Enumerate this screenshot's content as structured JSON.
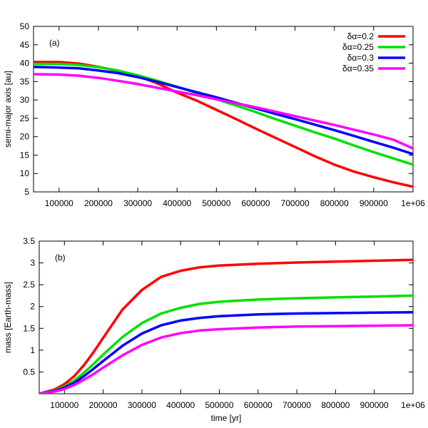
{
  "chart_data": [
    {
      "type": "line",
      "label": "(a)",
      "xlabel": "",
      "ylabel": "semi-major axis [au]",
      "xlim": [
        35000,
        1000000
      ],
      "ylim": [
        5,
        50
      ],
      "xticks": [
        100000,
        200000,
        300000,
        400000,
        500000,
        600000,
        700000,
        800000,
        900000,
        1000000
      ],
      "xtick_labels": [
        "100000",
        "200000",
        "300000",
        "400000",
        "500000",
        "600000",
        "700000",
        "800000",
        "900000",
        "1e+06"
      ],
      "yticks": [
        5,
        10,
        15,
        20,
        25,
        30,
        35,
        40,
        45,
        50
      ],
      "ytick_labels": [
        "5",
        "10",
        "15",
        "20",
        "25",
        "30",
        "35",
        "40",
        "45",
        "50"
      ],
      "legend_position": "top-right",
      "series": [
        {
          "name": "δα=0.2",
          "color": "#ff0000",
          "x": [
            35000,
            100000,
            150000,
            200000,
            250000,
            300000,
            350000,
            400000,
            450000,
            500000,
            550000,
            600000,
            650000,
            700000,
            750000,
            800000,
            850000,
            900000,
            950000,
            1000000
          ],
          "y": [
            40.3,
            40.3,
            39.9,
            39.0,
            37.9,
            36.5,
            34.5,
            32.0,
            29.8,
            27.3,
            24.8,
            22.2,
            19.7,
            17.2,
            14.7,
            12.4,
            10.5,
            9.0,
            7.6,
            6.4
          ]
        },
        {
          "name": "δα=0.25",
          "color": "#00e000",
          "x": [
            35000,
            100000,
            150000,
            200000,
            250000,
            300000,
            350000,
            400000,
            450000,
            500000,
            550000,
            600000,
            650000,
            700000,
            750000,
            800000,
            850000,
            900000,
            950000,
            1000000
          ],
          "y": [
            39.8,
            39.8,
            39.5,
            38.9,
            38.0,
            36.7,
            35.2,
            33.6,
            31.9,
            30.2,
            28.5,
            26.7,
            24.8,
            23.0,
            21.2,
            19.5,
            17.6,
            15.8,
            14.1,
            12.4
          ]
        },
        {
          "name": "δα=0.3",
          "color": "#0000ff",
          "x": [
            35000,
            100000,
            150000,
            200000,
            250000,
            300000,
            350000,
            400000,
            450000,
            500000,
            550000,
            600000,
            650000,
            700000,
            750000,
            800000,
            850000,
            900000,
            950000,
            1000000
          ],
          "y": [
            39.0,
            38.8,
            38.6,
            38.0,
            37.3,
            36.2,
            34.9,
            33.5,
            32.1,
            30.7,
            29.2,
            27.7,
            26.2,
            24.8,
            23.3,
            21.8,
            20.2,
            18.6,
            17.0,
            15.3
          ]
        },
        {
          "name": "δα=0.35",
          "color": "#ff00ff",
          "x": [
            35000,
            100000,
            150000,
            200000,
            250000,
            300000,
            350000,
            400000,
            450000,
            500000,
            550000,
            600000,
            650000,
            700000,
            750000,
            800000,
            850000,
            900000,
            950000,
            1000000
          ],
          "y": [
            37.0,
            36.9,
            36.6,
            36.0,
            35.2,
            34.3,
            33.3,
            32.3,
            31.3,
            30.2,
            29.1,
            28.0,
            26.8,
            25.6,
            24.4,
            23.2,
            21.9,
            20.6,
            19.2,
            16.8
          ]
        }
      ]
    },
    {
      "type": "line",
      "label": "(b)",
      "xlabel": "time [yr]",
      "ylabel": "mass [Earth-mass]",
      "xlim": [
        35000,
        1000000
      ],
      "ylim": [
        0,
        3.5
      ],
      "xticks": [
        100000,
        200000,
        300000,
        400000,
        500000,
        600000,
        700000,
        800000,
        900000,
        1000000
      ],
      "xtick_labels": [
        "100000",
        "200000",
        "300000",
        "400000",
        "500000",
        "600000",
        "700000",
        "800000",
        "900000",
        "1e+06"
      ],
      "yticks": [
        0.5,
        1,
        1.5,
        2,
        2.5,
        3,
        3.5
      ],
      "ytick_labels": [
        "0.5",
        "1",
        "1.5",
        "2",
        "2.5",
        "3",
        "3.5"
      ],
      "series": [
        {
          "name": "δα=0.2",
          "color": "#ff0000",
          "x": [
            35000,
            75000,
            100000,
            125000,
            150000,
            175000,
            200000,
            250000,
            300000,
            350000,
            400000,
            450000,
            500000,
            600000,
            700000,
            800000,
            900000,
            1000000
          ],
          "y": [
            0.0,
            0.1,
            0.22,
            0.4,
            0.65,
            0.95,
            1.28,
            1.93,
            2.38,
            2.68,
            2.82,
            2.9,
            2.94,
            2.98,
            3.01,
            3.03,
            3.05,
            3.07
          ]
        },
        {
          "name": "δα=0.25",
          "color": "#00e000",
          "x": [
            35000,
            75000,
            100000,
            125000,
            150000,
            175000,
            200000,
            250000,
            300000,
            350000,
            400000,
            450000,
            500000,
            600000,
            700000,
            800000,
            900000,
            1000000
          ],
          "y": [
            0.0,
            0.07,
            0.17,
            0.3,
            0.48,
            0.68,
            0.9,
            1.3,
            1.62,
            1.84,
            1.97,
            2.06,
            2.11,
            2.16,
            2.19,
            2.21,
            2.23,
            2.25
          ]
        },
        {
          "name": "δα=0.3",
          "color": "#0000ff",
          "x": [
            35000,
            75000,
            100000,
            125000,
            150000,
            175000,
            200000,
            250000,
            300000,
            350000,
            400000,
            450000,
            500000,
            600000,
            700000,
            800000,
            900000,
            1000000
          ],
          "y": [
            0.0,
            0.06,
            0.14,
            0.25,
            0.4,
            0.57,
            0.75,
            1.1,
            1.38,
            1.57,
            1.68,
            1.74,
            1.78,
            1.82,
            1.84,
            1.85,
            1.86,
            1.87
          ]
        },
        {
          "name": "δα=0.35",
          "color": "#ff00ff",
          "x": [
            35000,
            75000,
            100000,
            125000,
            150000,
            175000,
            200000,
            250000,
            300000,
            350000,
            400000,
            450000,
            500000,
            600000,
            700000,
            800000,
            900000,
            1000000
          ],
          "y": [
            0.0,
            0.05,
            0.11,
            0.2,
            0.32,
            0.45,
            0.6,
            0.88,
            1.12,
            1.29,
            1.39,
            1.45,
            1.48,
            1.52,
            1.54,
            1.55,
            1.56,
            1.57
          ]
        }
      ]
    }
  ]
}
